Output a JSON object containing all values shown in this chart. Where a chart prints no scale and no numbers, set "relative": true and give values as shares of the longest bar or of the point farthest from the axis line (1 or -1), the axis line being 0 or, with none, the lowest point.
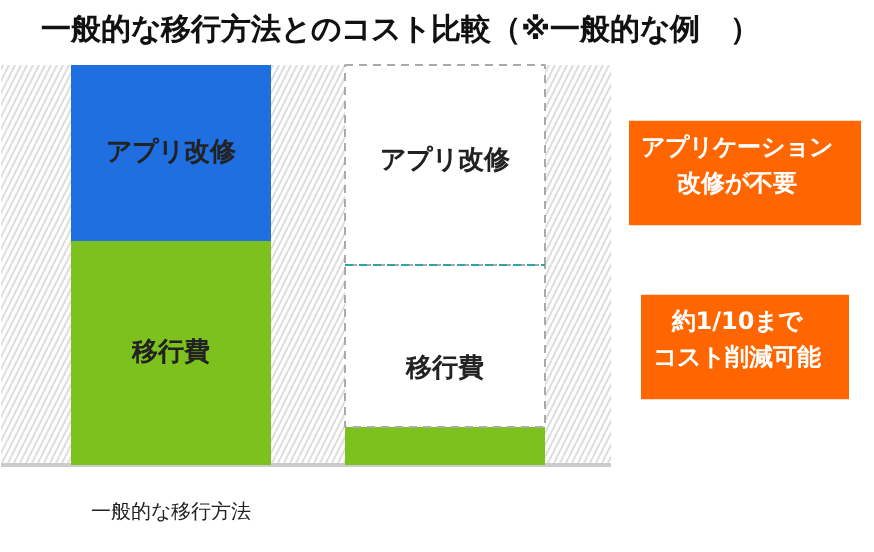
{
  "chart_data": {
    "type": "bar",
    "stacked": true,
    "relative": true,
    "legend": false,
    "title": "一般的な移行方法とのコスト比較（※一般的な例　）",
    "categories": [
      "一般的な移行方法",
      null
    ],
    "series": [
      {
        "name": "移行費",
        "color": "#7dc11f",
        "values": [
          0.56,
          0.095
        ]
      },
      {
        "name": "アプリ改修",
        "color": "#1f6fe0",
        "values": [
          0.44,
          null
        ]
      },
      {
        "color": "#ffffff",
        "line_style": "dashed",
        "values": [
          null,
          0.405
        ]
      },
      {
        "color": "#ffffff",
        "line_style": "dashed",
        "values": [
          null,
          0.5
        ]
      }
    ],
    "annotations": [
      "アプリ改修",
      "移行費",
      "アプリケーション改修が不要",
      "約1/10までコスト削減可能"
    ]
  }
}
